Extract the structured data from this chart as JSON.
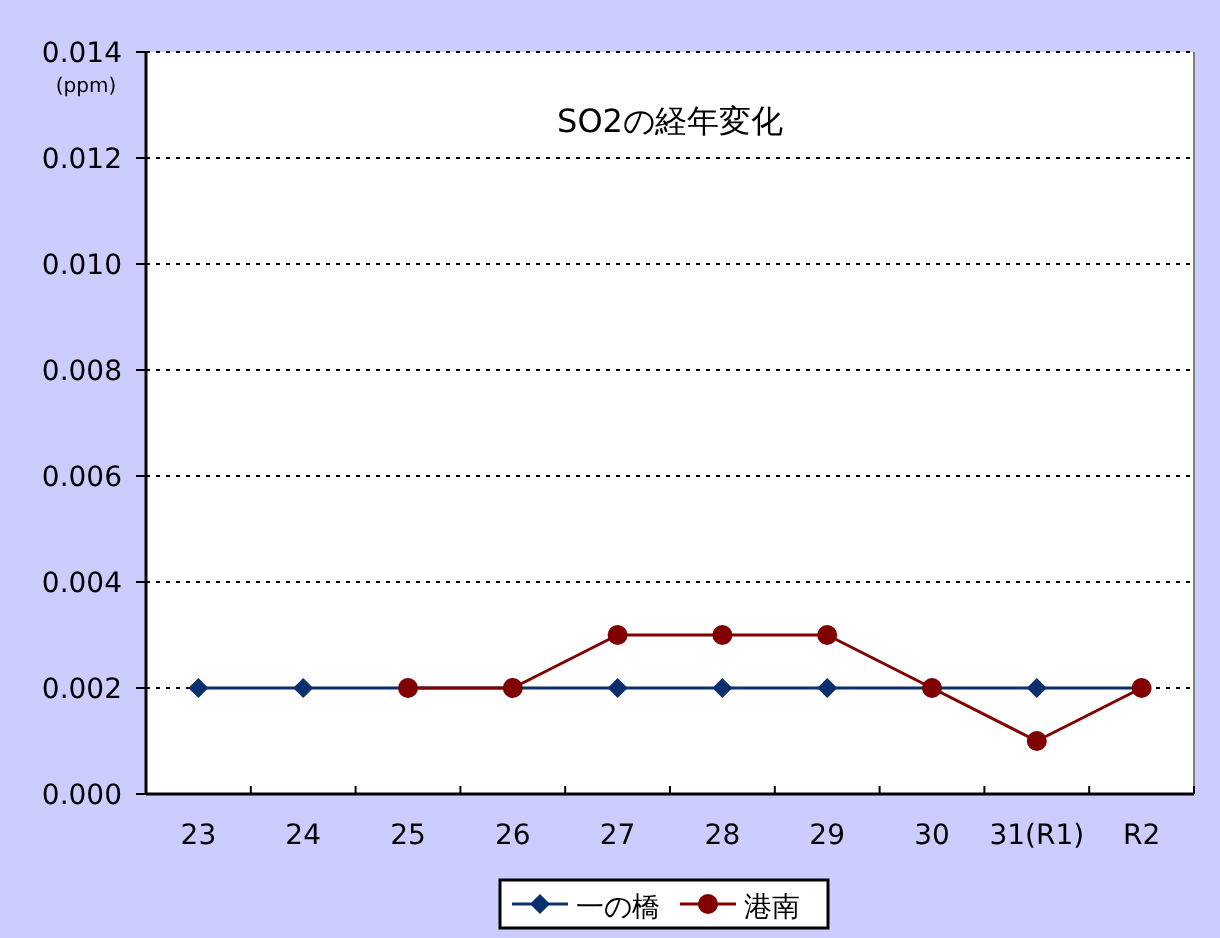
{
  "chart_data": {
    "type": "line",
    "title": "SO2の経年変化",
    "ylabel": "(ppm)",
    "categories": [
      "23",
      "24",
      "25",
      "26",
      "27",
      "28",
      "29",
      "30",
      "31(R1)",
      "R2"
    ],
    "series": [
      {
        "name": "一の橋",
        "color": "#0a2f6e",
        "marker": "diamond",
        "values": [
          0.002,
          0.002,
          0.002,
          0.002,
          0.002,
          0.002,
          0.002,
          0.002,
          0.002,
          0.002
        ]
      },
      {
        "name": "港南",
        "color": "#800000",
        "marker": "circle",
        "values": [
          null,
          null,
          0.002,
          0.002,
          0.003,
          0.003,
          0.003,
          0.002,
          0.001,
          0.002
        ]
      }
    ],
    "ylim": [
      0,
      0.014
    ],
    "yticks": [
      {
        "value": 0,
        "label": "0.000"
      },
      {
        "value": 0.002,
        "label": "0.002"
      },
      {
        "value": 0.004,
        "label": "0.004"
      },
      {
        "value": 0.006,
        "label": "0.006"
      },
      {
        "value": 0.008,
        "label": "0.008"
      },
      {
        "value": 0.01,
        "label": "0.010"
      },
      {
        "value": 0.012,
        "label": "0.012"
      },
      {
        "value": 0.014,
        "label": "0.014"
      }
    ],
    "grid": "y",
    "legend": "bottom",
    "line_style": "solid"
  }
}
